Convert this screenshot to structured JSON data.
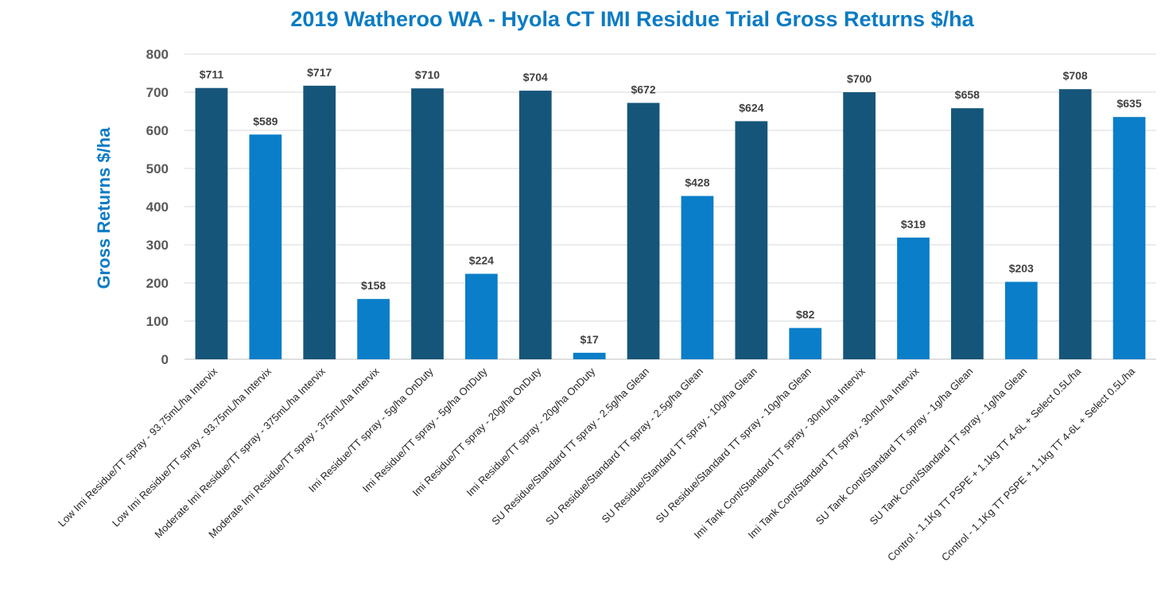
{
  "colors": {
    "title": "#0A7BC4",
    "ylabel": "#0A7BC4",
    "dark_bar": "#16557A",
    "light_bar": "#0A7EC8",
    "grid": "#D9D9D9",
    "axis": "#BFBFBF"
  },
  "chart_data": {
    "type": "bar",
    "title": "2019 Watheroo WA - Hyola CT IMI Residue Trial Gross Returns $/ha",
    "xlabel": "",
    "ylabel": "Gross Returns $/ha",
    "ylim": [
      0,
      800
    ],
    "yticks": [
      "0",
      "100",
      "200",
      "300",
      "400",
      "500",
      "600",
      "700",
      "800"
    ],
    "grid": true,
    "legend": "none",
    "categories": [
      "Low Imi Residue/TT spray - 93.75mL/ha Intervix",
      "Low Imi Residue/TT spray - 93.75mL/ha Intervix",
      "Moderate Imi Residue/TT spray - 375mL/ha Intervix",
      "Moderate Imi Residue/TT spray - 375mL/ha Intervix",
      "Imi Residue/TT spray - 5g/ha OnDuty",
      "Imi Residue/TT spray - 5g/ha OnDuty",
      "Imi Residue/TT spray - 20g/ha OnDuty",
      "Imi Residue/TT spray - 20g/ha OnDuty",
      "SU Residue/Standard TT spray - 2.5g/ha Glean",
      "SU Residue/Standard TT spray - 2.5g/ha Glean",
      "SU Residue/Standard TT spray - 10g/ha Glean",
      "SU Residue/Standard TT spray - 10g/ha Glean",
      "Imi Tank Cont/Standard TT spray - 30mL/ha Intervix",
      "Imi Tank Cont/Standard TT spray - 30mL/ha Intervix",
      "SU Tank Cont/Standard TT spray - 1g/ha Glean",
      "SU Tank Cont/Standard TT spray - 1g/ha Glean",
      "Control - 1.1Kg TT PSPE + 1.1kg TT 4-6L + Select 0.5L/ha",
      "Control - 1.1Kg TT PSPE + 1.1kg TT 4-6L + Select 0.5L/ha"
    ],
    "values": [
      711,
      589,
      717,
      158,
      710,
      224,
      704,
      17,
      672,
      428,
      624,
      82,
      700,
      319,
      658,
      203,
      708,
      635
    ],
    "data_labels": [
      "$711",
      "$589",
      "$717",
      "$158",
      "$710",
      "$224",
      "$704",
      "$17",
      "$672",
      "$428",
      "$624",
      "$82",
      "$700",
      "$319",
      "$658",
      "$203",
      "$708",
      "$635"
    ],
    "bar_shade": [
      "dark",
      "light",
      "dark",
      "light",
      "dark",
      "light",
      "dark",
      "light",
      "dark",
      "light",
      "dark",
      "light",
      "dark",
      "light",
      "dark",
      "light",
      "dark",
      "light"
    ]
  }
}
